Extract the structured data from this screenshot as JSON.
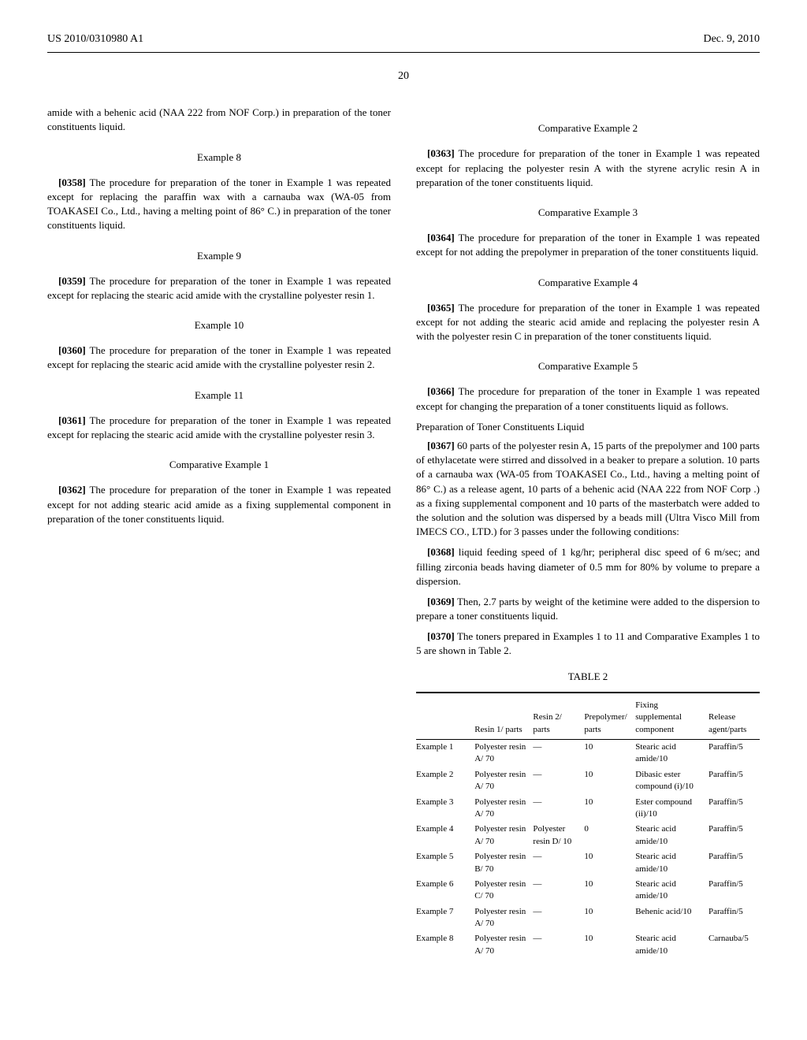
{
  "header": {
    "left": "US 2010/0310980 A1",
    "right": "Dec. 9, 2010"
  },
  "page_number": "20",
  "left_column": {
    "top_fragment": "amide with a behenic acid (NAA 222 from NOF Corp.) in preparation of the toner constituents liquid.",
    "sections": [
      {
        "title": "Example 8",
        "paras": [
          {
            "num": "[0358]",
            "text": "The procedure for preparation of the toner in Example 1 was repeated except for replacing the paraffin wax with a carnauba wax (WA-05 from TOAKASEI Co., Ltd., having a melting point of 86° C.) in preparation of the toner constituents liquid."
          }
        ]
      },
      {
        "title": "Example 9",
        "paras": [
          {
            "num": "[0359]",
            "text": "The procedure for preparation of the toner in Example 1 was repeated except for replacing the stearic acid amide with the crystalline polyester resin 1."
          }
        ]
      },
      {
        "title": "Example 10",
        "paras": [
          {
            "num": "[0360]",
            "text": "The procedure for preparation of the toner in Example 1 was repeated except for replacing the stearic acid amide with the crystalline polyester resin 2."
          }
        ]
      },
      {
        "title": "Example 11",
        "paras": [
          {
            "num": "[0361]",
            "text": "The procedure for preparation of the toner in Example 1 was repeated except for replacing the stearic acid amide with the crystalline polyester resin 3."
          }
        ]
      },
      {
        "title": "Comparative Example 1",
        "paras": [
          {
            "num": "[0362]",
            "text": "The procedure for preparation of the toner in Example 1 was repeated except for not adding stearic acid amide as a fixing supplemental component in preparation of the toner constituents liquid."
          }
        ]
      }
    ]
  },
  "right_column": {
    "sections": [
      {
        "title": "Comparative Example 2",
        "paras": [
          {
            "num": "[0363]",
            "text": "The procedure for preparation of the toner in Example 1 was repeated except for replacing the polyester resin A with the styrene acrylic resin A in preparation of the toner constituents liquid."
          }
        ]
      },
      {
        "title": "Comparative Example 3",
        "paras": [
          {
            "num": "[0364]",
            "text": "The procedure for preparation of the toner in Example 1 was repeated except for not adding the prepolymer in preparation of the toner constituents liquid."
          }
        ]
      },
      {
        "title": "Comparative Example 4",
        "paras": [
          {
            "num": "[0365]",
            "text": "The procedure for preparation of the toner in Example 1 was repeated except for not adding the stearic acid amide and replacing the polyester resin A with the polyester resin C in preparation of the toner constituents liquid."
          }
        ]
      },
      {
        "title": "Comparative Example 5",
        "paras": [
          {
            "num": "[0366]",
            "text": "The procedure for preparation of the toner in Example 1 was repeated except for changing the preparation of a toner constituents liquid as follows."
          }
        ],
        "sub": {
          "heading": "Preparation of Toner Constituents Liquid",
          "paras": [
            {
              "num": "[0367]",
              "text": "60 parts of the polyester resin A, 15 parts of the prepolymer and 100 parts of ethylacetate were stirred and dissolved in a beaker to prepare a solution. 10 parts of a carnauba wax (WA-05 from TOAKASEI Co., Ltd., having a melting point of 86° C.) as a release agent, 10 parts of a behenic acid (NAA 222 from NOF Corp .) as a fixing supplemental component and 10 parts of the masterbatch were added to the solution and the solution was dispersed by a beads mill (Ultra Visco Mill from IMECS CO., LTD.) for 3 passes under the following conditions:"
            },
            {
              "num": "[0368]",
              "text": "liquid feeding speed of 1 kg/hr; peripheral disc speed of 6 m/sec; and filling zirconia beads having diameter of 0.5 mm for 80% by volume to prepare a dispersion."
            },
            {
              "num": "[0369]",
              "text": "Then, 2.7 parts by weight of the ketimine were added to the dispersion to prepare a toner constituents liquid."
            },
            {
              "num": "[0370]",
              "text": "The toners prepared in Examples 1 to 11 and Comparative Examples 1 to 5 are shown in Table 2."
            }
          ]
        }
      }
    ]
  },
  "table": {
    "caption": "TABLE 2",
    "columns": [
      "",
      "Resin 1/ parts",
      "Resin 2/ parts",
      "Prepolymer/ parts",
      "Fixing supplemental component",
      "Release agent/parts"
    ],
    "rows": [
      [
        "Example 1",
        "Polyester resin A/ 70",
        "—",
        "10",
        "Stearic acid amide/10",
        "Paraffin/5"
      ],
      [
        "Example 2",
        "Polyester resin A/ 70",
        "—",
        "10",
        "Dibasic ester compound (i)/10",
        "Paraffin/5"
      ],
      [
        "Example 3",
        "Polyester resin A/ 70",
        "—",
        "10",
        "Ester compound (ii)/10",
        "Paraffin/5"
      ],
      [
        "Example 4",
        "Polyester resin A/ 70",
        "Polyester resin D/ 10",
        "0",
        "Stearic acid amide/10",
        "Paraffin/5"
      ],
      [
        "Example 5",
        "Polyester resin B/ 70",
        "—",
        "10",
        "Stearic acid amide/10",
        "Paraffin/5"
      ],
      [
        "Example 6",
        "Polyester resin C/ 70",
        "—",
        "10",
        "Stearic acid amide/10",
        "Paraffin/5"
      ],
      [
        "Example 7",
        "Polyester resin A/ 70",
        "—",
        "10",
        "Behenic acid/10",
        "Paraffin/5"
      ],
      [
        "Example 8",
        "Polyester resin A/ 70",
        "—",
        "10",
        "Stearic acid amide/10",
        "Carnauba/5"
      ]
    ],
    "col_widths": [
      "16%",
      "16%",
      "14%",
      "14%",
      "20%",
      "14%"
    ]
  }
}
